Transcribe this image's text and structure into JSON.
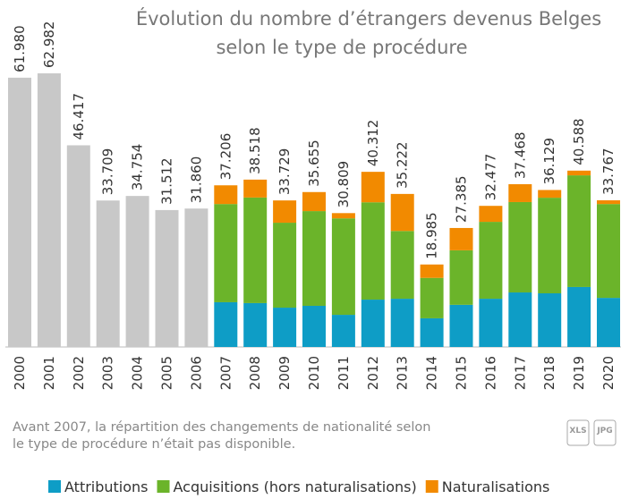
{
  "chart_data": {
    "type": "stacked-bar",
    "title": [
      "Évolution du nombre d’étrangers devenus Belges",
      "selon le type de procédure"
    ],
    "categories": [
      "2000",
      "2001",
      "2002",
      "2003",
      "2004",
      "2005",
      "2006",
      "2007",
      "2008",
      "2009",
      "2010",
      "2011",
      "2012",
      "2013",
      "2014",
      "2015",
      "2016",
      "2017",
      "2018",
      "2019",
      "2020"
    ],
    "values": [
      61980,
      62982,
      46417,
      33709,
      34754,
      31512,
      31860,
      37206,
      38518,
      33729,
      35655,
      30809,
      40312,
      35222,
      18985,
      27385,
      32477,
      37468,
      36129,
      40588,
      33767
    ],
    "value_labels": [
      "61.980",
      "62.982",
      "46.417",
      "33.709",
      "34.754",
      "31.512",
      "31.860",
      "37.206",
      "38.518",
      "33.729",
      "35.655",
      "30.809",
      "40.312",
      "35.222",
      "18.985",
      "27.385",
      "32.477",
      "37.468",
      "36.129",
      "40.588",
      "33.767"
    ],
    "color": "#c8c8c8",
    "series": [
      {
        "name": "Attributions",
        "color": "#0e9dc6",
        "values": [
          null,
          null,
          null,
          null,
          null,
          null,
          null,
          10300,
          10100,
          9050,
          9470,
          7400,
          10900,
          11100,
          6600,
          9700,
          11100,
          12550,
          12350,
          13800,
          11300
        ]
      },
      {
        "name": "Acquisitions (hors naturalisations)",
        "color": "#6bb42a",
        "values": [
          null,
          null,
          null,
          null,
          null,
          null,
          null,
          22600,
          24300,
          19550,
          21800,
          22200,
          22400,
          15600,
          9300,
          12550,
          17700,
          20800,
          22000,
          25700,
          21600
        ]
      },
      {
        "name": "Naturalisations",
        "color": "#f28a00",
        "values": [
          null,
          null,
          null,
          null,
          null,
          null,
          null,
          4306,
          4118,
          5129,
          4385,
          1209,
          7012,
          8522,
          3085,
          5135,
          3677,
          4118,
          1779,
          1088,
          867
        ]
      }
    ],
    "note": [
      "Avant 2007, la répartition des changements de nationalité selon",
      "le type de procédure n’était pas disponible."
    ]
  },
  "downloads": [
    "XLS",
    "JPG"
  ]
}
